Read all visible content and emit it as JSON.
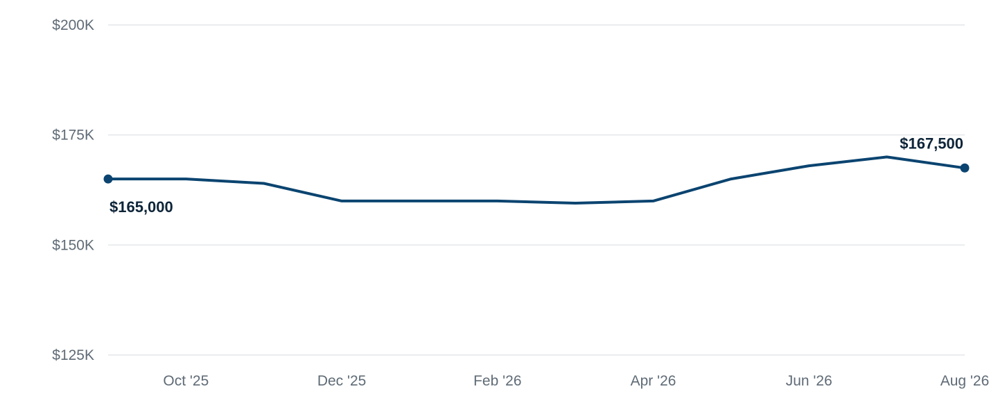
{
  "chart_data": {
    "type": "line",
    "title": "",
    "xlabel": "",
    "ylabel": "",
    "ylim": [
      125000,
      200000
    ],
    "y_ticks": [
      {
        "value": 200000,
        "label": "$200K"
      },
      {
        "value": 175000,
        "label": "$175K"
      },
      {
        "value": 150000,
        "label": "$150K"
      },
      {
        "value": 125000,
        "label": "$125K"
      }
    ],
    "x_ticks": [
      {
        "date": "2025-10",
        "label": "Oct '25"
      },
      {
        "date": "2025-12",
        "label": "Dec '25"
      },
      {
        "date": "2026-02",
        "label": "Feb '26"
      },
      {
        "date": "2026-04",
        "label": "Apr '26"
      },
      {
        "date": "2026-06",
        "label": "Jun '26"
      },
      {
        "date": "2026-08",
        "label": "Aug '26"
      }
    ],
    "x": [
      "2025-09",
      "2025-10",
      "2025-11",
      "2025-12",
      "2026-01",
      "2026-02",
      "2026-03",
      "2026-04",
      "2026-05",
      "2026-06",
      "2026-07",
      "2026-08"
    ],
    "series": [
      {
        "values": [
          165000,
          165000,
          164000,
          160000,
          160000,
          160000,
          159500,
          160000,
          165000,
          168000,
          170000,
          167500
        ],
        "color": "#0b4470"
      }
    ],
    "annotations": {
      "start_label": "$165,000",
      "end_label": "$167,500"
    },
    "grid": true,
    "legend": "none"
  }
}
